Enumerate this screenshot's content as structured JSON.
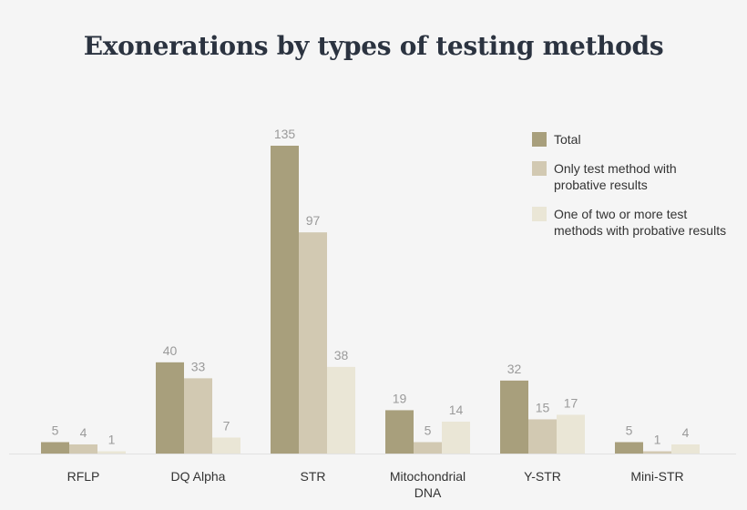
{
  "chart_data": {
    "type": "bar",
    "title": "Exonerations by types of testing methods",
    "categories": [
      [
        "RFLP"
      ],
      [
        "DQ Alpha"
      ],
      [
        "STR"
      ],
      [
        "Mitochondrial",
        "DNA"
      ],
      [
        "Y-STR"
      ],
      [
        "Mini-STR"
      ]
    ],
    "series": [
      {
        "name": "Total",
        "color": "#a89f7c",
        "values": [
          5,
          40,
          135,
          19,
          32,
          5
        ]
      },
      {
        "name": "Only test method with probative results",
        "legend_lines": [
          "Only test method with",
          "probative results"
        ],
        "color": "#d2c9b2",
        "values": [
          4,
          33,
          97,
          5,
          15,
          1
        ]
      },
      {
        "name": "One of two or more test methods with probative results",
        "legend_lines": [
          "One of two or more test",
          "methods with probative results"
        ],
        "color": "#eae6d6",
        "values": [
          1,
          7,
          38,
          14,
          17,
          4
        ]
      }
    ],
    "ylim": [
      0,
      135
    ],
    "xlabel": "",
    "ylabel": "",
    "grid": false,
    "legend": "top-right"
  }
}
